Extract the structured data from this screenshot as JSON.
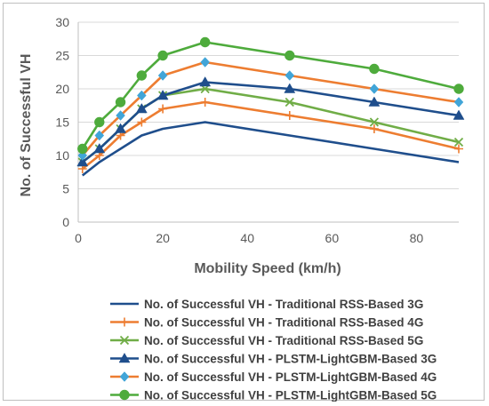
{
  "chart_data": {
    "type": "line",
    "xlabel": "Mobility Speed (km/h)",
    "ylabel": "No. of Successful VH",
    "xlim": [
      0,
      90
    ],
    "ylim": [
      0,
      30
    ],
    "x_ticks": [
      0,
      20,
      40,
      60,
      80
    ],
    "y_ticks": [
      0,
      5,
      10,
      15,
      20,
      25,
      30
    ],
    "grid": "horizontal",
    "legend": "bottom",
    "x": [
      1,
      5,
      10,
      15,
      20,
      30,
      50,
      70,
      90
    ],
    "series": [
      {
        "name": "No. of Successful VH - Traditional RSS-Based 3G",
        "color": "#1f4e8c",
        "marker": "none",
        "values": [
          7,
          9,
          11,
          13,
          14,
          15,
          13,
          11,
          9
        ]
      },
      {
        "name": "No. of Successful VH - Traditional RSS-Based 4G",
        "color": "#ed7d31",
        "marker": "plus",
        "values": [
          8,
          10,
          13,
          15,
          17,
          18,
          16,
          14,
          11
        ]
      },
      {
        "name": "No. of Successful VH - Traditional RSS-Based 5G",
        "color": "#70ad47",
        "marker": "x",
        "values": [
          9,
          11,
          14,
          17,
          19,
          20,
          18,
          15,
          12
        ]
      },
      {
        "name": "No. of Successful VH - PLSTM-LightGBM-Based 3G",
        "color": "#1f4e8c",
        "marker": "triangle",
        "values": [
          9,
          11,
          14,
          17,
          19,
          21,
          20,
          18,
          16
        ]
      },
      {
        "name": "No. of Successful VH - PLSTM-LightGBM-Based 4G",
        "color": "#ed7d31",
        "marker": "diamond",
        "marker_fill": "#41a5d8",
        "values": [
          10,
          13,
          16,
          19,
          22,
          24,
          22,
          20,
          18
        ]
      },
      {
        "name": "No. of Successful VH - PLSTM-LightGBM-Based 5G",
        "color": "#4eab3c",
        "marker": "circle",
        "values": [
          11,
          15,
          18,
          22,
          25,
          27,
          25,
          23,
          20
        ]
      }
    ]
  }
}
